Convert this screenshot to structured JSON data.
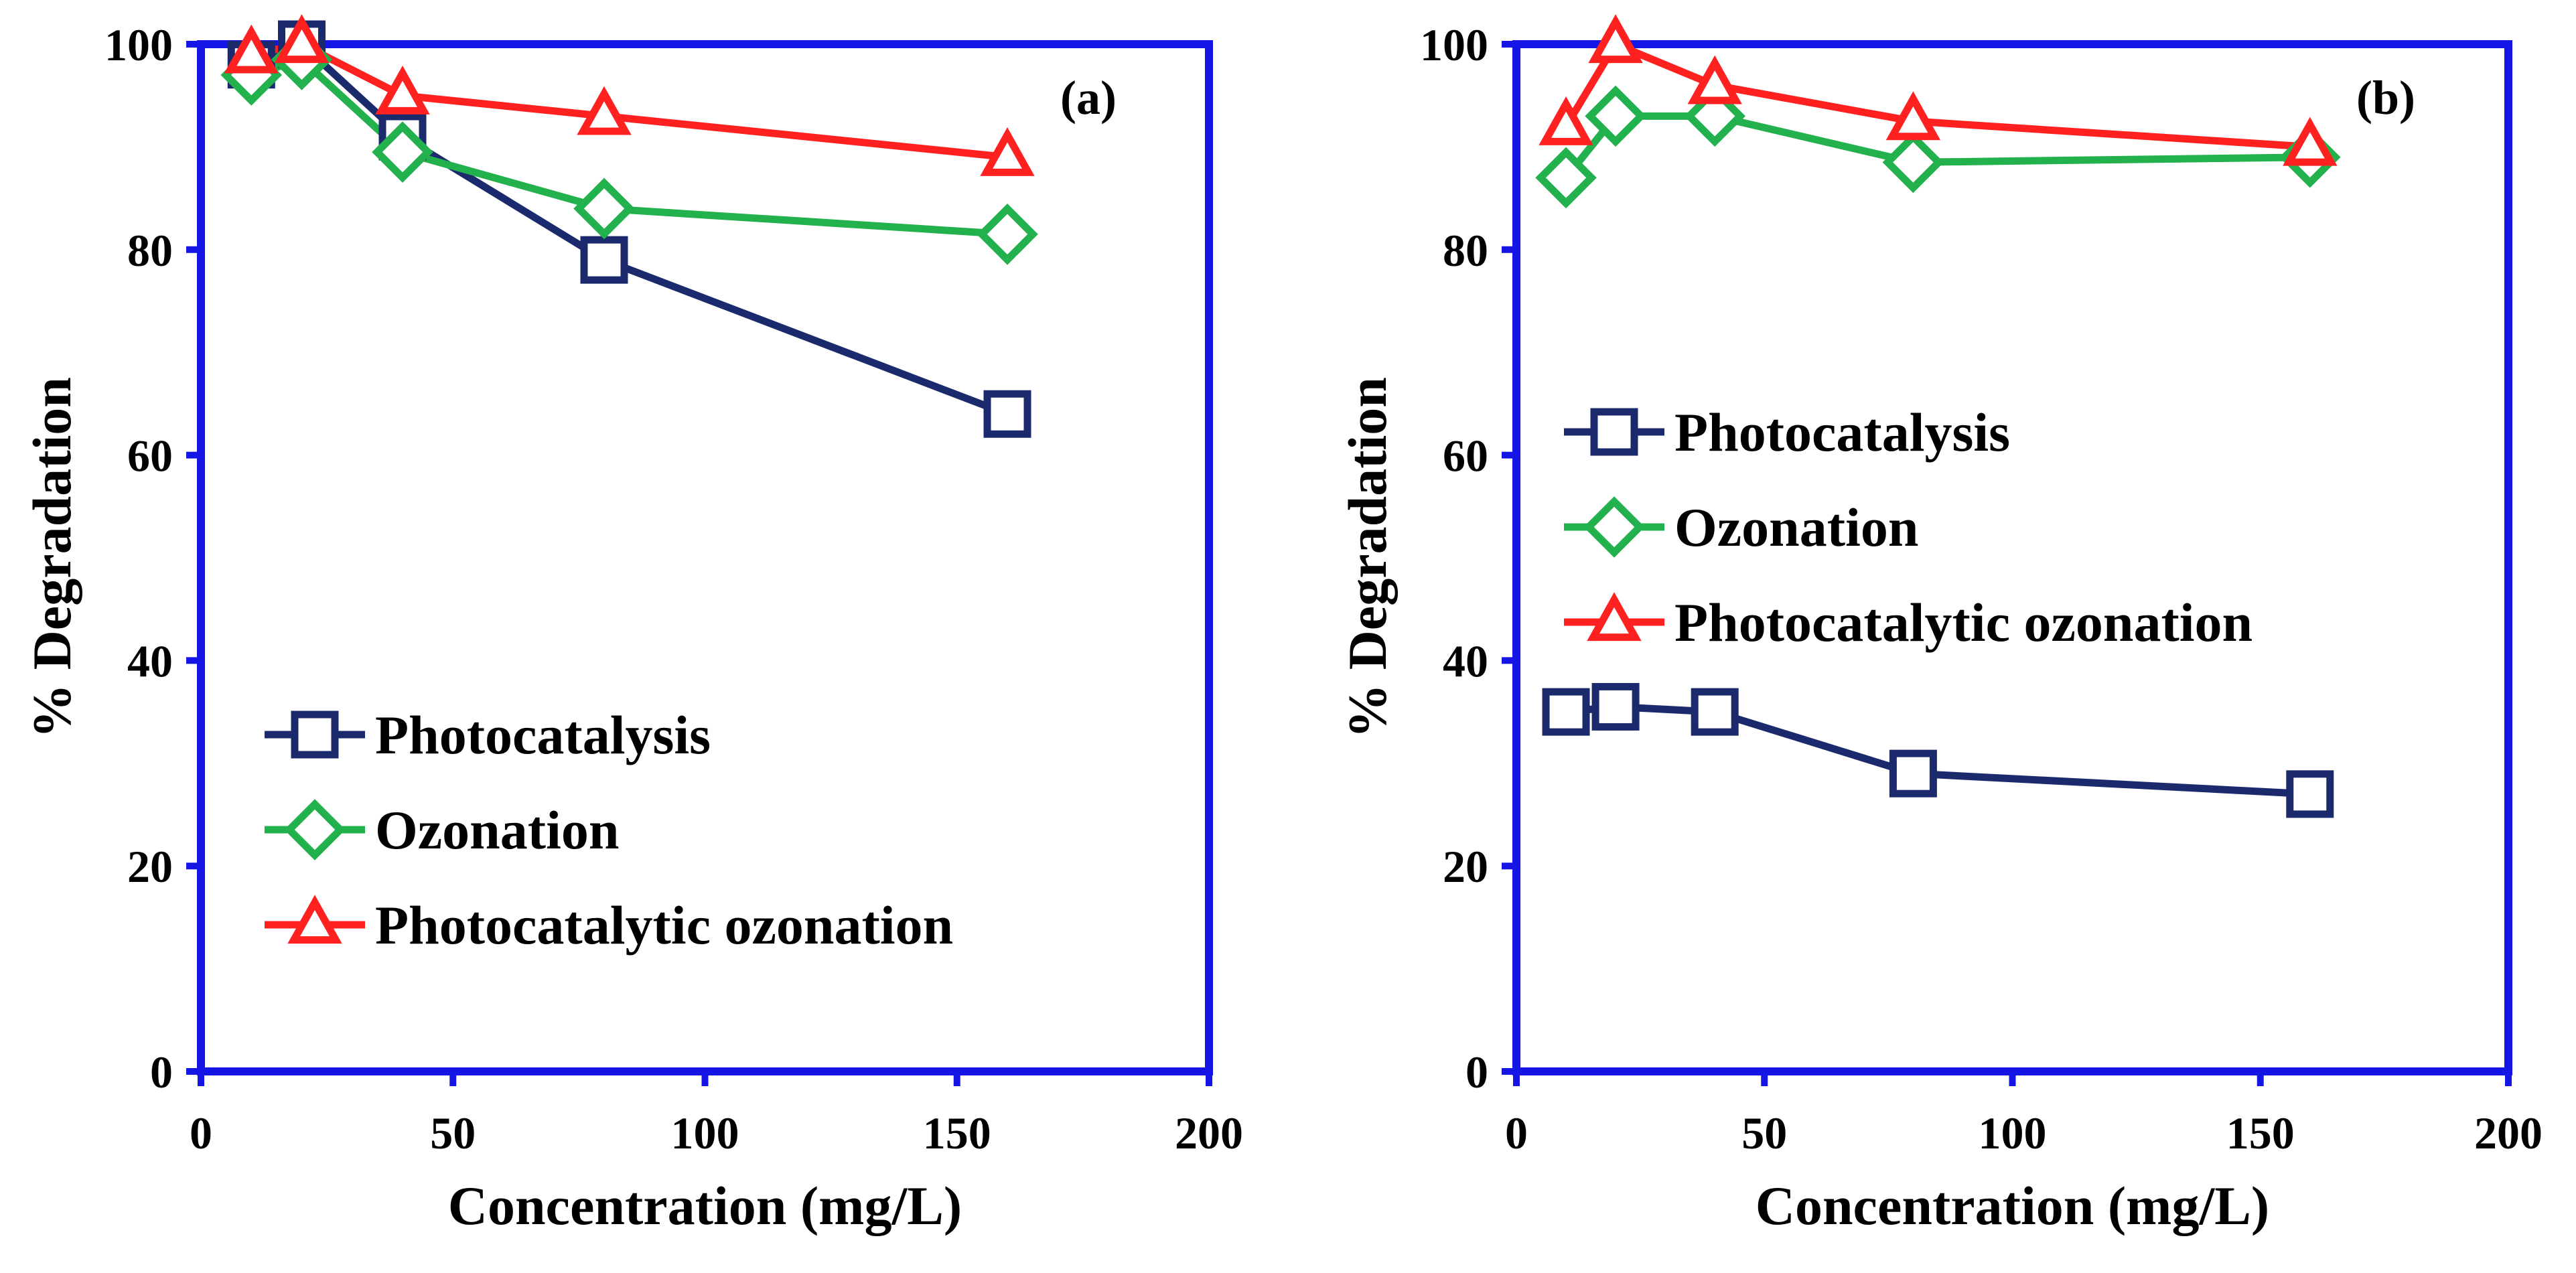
{
  "chart_data": [
    {
      "type": "line",
      "panel_label": "(a)",
      "xlabel": "Concentration (mg/L)",
      "ylabel": "% Degradation",
      "xlim": [
        0,
        200
      ],
      "ylim": [
        0,
        100
      ],
      "xticks": [
        0,
        50,
        100,
        150,
        200
      ],
      "yticks": [
        0,
        20,
        40,
        60,
        80,
        100
      ],
      "x": [
        10,
        20,
        40,
        80,
        160
      ],
      "legend_position": "bottom-left",
      "series": [
        {
          "name": "Photocatalysis",
          "color": "#1a2a6c",
          "marker": "square",
          "values": [
            98,
            100,
            91,
            79,
            64
          ]
        },
        {
          "name": "Ozonation",
          "color": "#22b14c",
          "marker": "diamond",
          "values": [
            97,
            98.5,
            89.5,
            84,
            81.5
          ]
        },
        {
          "name": "Photocatalytic ozonation",
          "color": "#ff2020",
          "marker": "triangle",
          "values": [
            99,
            100,
            95,
            93,
            89
          ]
        }
      ]
    },
    {
      "type": "line",
      "panel_label": "(b)",
      "xlabel": "Concentration (mg/L)",
      "ylabel": "% Degradation",
      "xlim": [
        0,
        200
      ],
      "ylim": [
        0,
        100
      ],
      "xticks": [
        0,
        50,
        100,
        150,
        200
      ],
      "yticks": [
        0,
        20,
        40,
        60,
        80,
        100
      ],
      "x": [
        10,
        20,
        40,
        80,
        160
      ],
      "legend_position": "middle-left",
      "series": [
        {
          "name": "Photocatalysis",
          "color": "#1a2a6c",
          "marker": "square",
          "values": [
            35,
            35.5,
            35,
            29,
            27
          ]
        },
        {
          "name": "Ozonation",
          "color": "#22b14c",
          "marker": "diamond",
          "values": [
            87,
            93,
            93,
            88.5,
            89
          ]
        },
        {
          "name": "Photocatalytic ozonation",
          "color": "#ff2020",
          "marker": "triangle",
          "values": [
            92,
            100,
            96,
            92.5,
            90
          ]
        }
      ]
    }
  ],
  "frame_color": "#1515e6"
}
